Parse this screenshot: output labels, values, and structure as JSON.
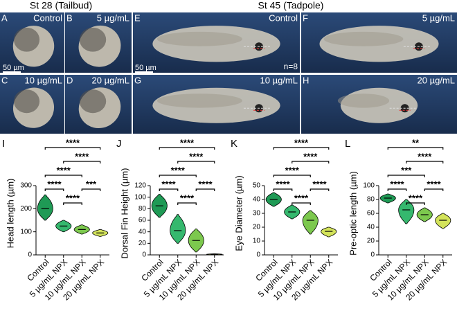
{
  "figure": {
    "left_title": "St 28 (Tailbud)",
    "right_title": "St 45 (Tadpole)",
    "photos": [
      {
        "letter": "A",
        "label": "Control"
      },
      {
        "letter": "B",
        "label": "5 µg/mL"
      },
      {
        "letter": "E",
        "label": "Control"
      },
      {
        "letter": "F",
        "label": "5 µg/mL"
      },
      {
        "letter": "C",
        "label": "10 µg/mL"
      },
      {
        "letter": "D",
        "label": "20 µg/mL"
      },
      {
        "letter": "G",
        "label": "10 µg/mL"
      },
      {
        "letter": "H",
        "label": "20 µg/mL"
      }
    ],
    "scale_bars": [
      "50 µm",
      "50 µm"
    ],
    "n_label": "n=8"
  },
  "chart_data": [
    {
      "type": "violin",
      "letter": "I",
      "y_label": "Head length (µm)",
      "categories": [
        "Control",
        "5 µg/mL NPX",
        "10 µg/mL NPX",
        "20 µg/mL NPX"
      ],
      "values": [
        200,
        125,
        110,
        95
      ],
      "min": [
        150,
        100,
        90,
        80
      ],
      "max": [
        260,
        150,
        130,
        110
      ],
      "colors": [
        "#1f9a55",
        "#35b86e",
        "#7cc84e",
        "#d3e35a"
      ],
      "ylim": [
        0,
        300
      ],
      "yticks": [
        0,
        100,
        200,
        300
      ],
      "comparisons": [
        {
          "label": "****",
          "from": 0,
          "to": 3
        },
        {
          "label": "****",
          "from": 1,
          "to": 3
        },
        {
          "label": "****",
          "from": 0,
          "to": 2
        },
        {
          "label": "****",
          "from": 0,
          "to": 1
        },
        {
          "label": "***",
          "from": 2,
          "to": 3
        },
        {
          "label": "****",
          "from": 1,
          "to": 2
        }
      ]
    },
    {
      "type": "violin",
      "letter": "J",
      "y_label": "Dorsal Fin Height (µm)",
      "categories": [
        "Control",
        "5 µg/mL NPX",
        "10 µg/mL NPX",
        "20 µg/mL NPX"
      ],
      "values": [
        85,
        42,
        25,
        1
      ],
      "min": [
        65,
        20,
        5,
        0
      ],
      "max": [
        105,
        70,
        45,
        2
      ],
      "colors": [
        "#1f9a55",
        "#35b86e",
        "#7cc84e",
        "#d3e35a"
      ],
      "ylim": [
        0,
        120
      ],
      "yticks": [
        0,
        20,
        40,
        60,
        80,
        100,
        120
      ],
      "comparisons": [
        {
          "label": "****",
          "from": 0,
          "to": 3
        },
        {
          "label": "****",
          "from": 1,
          "to": 3
        },
        {
          "label": "****",
          "from": 0,
          "to": 2
        },
        {
          "label": "****",
          "from": 0,
          "to": 1
        },
        {
          "label": "****",
          "from": 2,
          "to": 3
        },
        {
          "label": "****",
          "from": 1,
          "to": 2
        }
      ]
    },
    {
      "type": "violin",
      "letter": "K",
      "y_label": "Eye Diameter (µm)",
      "categories": [
        "Control",
        "5 µg/mL NPX",
        "10 µg/mL NPX",
        "20 µg/mL NPX"
      ],
      "values": [
        40,
        31,
        25,
        17
      ],
      "min": [
        35,
        26,
        15,
        13
      ],
      "max": [
        45,
        36,
        32,
        20
      ],
      "colors": [
        "#1f9a55",
        "#35b86e",
        "#7cc84e",
        "#d3e35a"
      ],
      "ylim": [
        0,
        50
      ],
      "yticks": [
        0,
        10,
        20,
        30,
        40,
        50
      ],
      "comparisons": [
        {
          "label": "****",
          "from": 0,
          "to": 3
        },
        {
          "label": "****",
          "from": 1,
          "to": 3
        },
        {
          "label": "****",
          "from": 0,
          "to": 2
        },
        {
          "label": "****",
          "from": 0,
          "to": 1
        },
        {
          "label": "****",
          "from": 2,
          "to": 3
        },
        {
          "label": "****",
          "from": 1,
          "to": 2
        }
      ]
    },
    {
      "type": "violin",
      "letter": "L",
      "y_label": "Pre-optic length (µm)",
      "categories": [
        "Control",
        "5 µg/mL NPX",
        "10 µg/mL NPX",
        "20 µg/mL NPX"
      ],
      "values": [
        82,
        65,
        58,
        50
      ],
      "min": [
        75,
        45,
        48,
        38
      ],
      "max": [
        88,
        80,
        68,
        60
      ],
      "colors": [
        "#1f9a55",
        "#35b86e",
        "#7cc84e",
        "#d3e35a"
      ],
      "ylim": [
        0,
        100
      ],
      "yticks": [
        0,
        20,
        40,
        60,
        80,
        100
      ],
      "comparisons": [
        {
          "label": "**",
          "from": 0,
          "to": 3
        },
        {
          "label": "****",
          "from": 1,
          "to": 3
        },
        {
          "label": "***",
          "from": 0,
          "to": 2
        },
        {
          "label": "****",
          "from": 0,
          "to": 1
        },
        {
          "label": "****",
          "from": 2,
          "to": 3
        },
        {
          "label": "****",
          "from": 1,
          "to": 2
        }
      ]
    }
  ]
}
